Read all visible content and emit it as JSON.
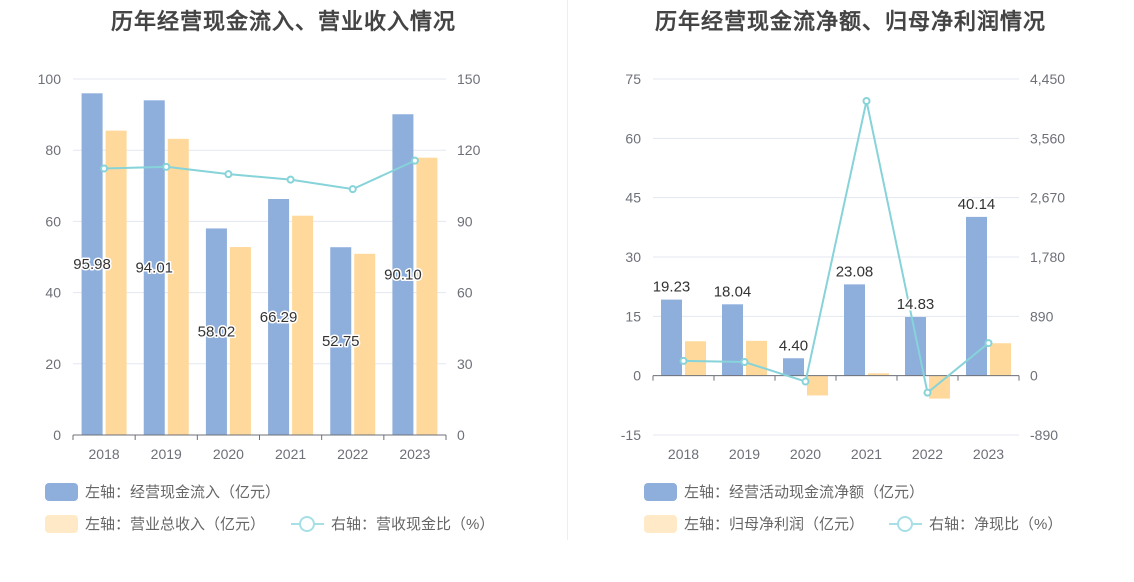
{
  "chart_data": [
    {
      "type": "bar",
      "title": "历年经营现金流入、营业收入情况",
      "categories": [
        "2018",
        "2019",
        "2020",
        "2021",
        "2022",
        "2023"
      ],
      "y_left": {
        "range": [
          0,
          100
        ],
        "ticks": [
          "0",
          "20",
          "40",
          "60",
          "80",
          "100"
        ]
      },
      "y_right": {
        "range": [
          0,
          150
        ],
        "ticks": [
          "0",
          "30",
          "60",
          "90",
          "120",
          "150"
        ]
      },
      "series": [
        {
          "name": "左轴：经营现金流入（亿元）",
          "axis": "left",
          "kind": "bar",
          "color": "#8eaedc",
          "values": [
            95.98,
            94.01,
            58.02,
            66.29,
            52.75,
            90.1
          ],
          "labels": [
            "95.98",
            "94.01",
            "58.02",
            "66.29",
            "52.75",
            "90.10"
          ]
        },
        {
          "name": "左轴：营业总收入（亿元）",
          "axis": "left",
          "kind": "bar",
          "color": "#ffd99c",
          "values": [
            85.5,
            83.2,
            52.8,
            61.6,
            50.9,
            77.9
          ]
        },
        {
          "name": "右轴：营收现金比（%）",
          "axis": "right",
          "kind": "line",
          "color": "#86d3d9",
          "values": [
            112.3,
            113.0,
            109.9,
            107.6,
            103.6,
            115.6
          ]
        }
      ],
      "legend_position": "bottom-left"
    },
    {
      "type": "bar",
      "title": "历年经营现金流净额、归母净利润情况",
      "categories": [
        "2018",
        "2019",
        "2020",
        "2021",
        "2022",
        "2023"
      ],
      "y_left": {
        "range": [
          -15,
          75
        ],
        "ticks": [
          "-15",
          "0",
          "15",
          "30",
          "45",
          "60",
          "75"
        ]
      },
      "y_right": {
        "range": [
          -890,
          4450
        ],
        "ticks": [
          "-890",
          "0",
          "890",
          "1,780",
          "2,670",
          "3,560",
          "4,450"
        ]
      },
      "series": [
        {
          "name": "左轴：经营活动现金流净额（亿元）",
          "axis": "left",
          "kind": "bar",
          "color": "#8eaedc",
          "values": [
            19.23,
            18.04,
            4.4,
            23.08,
            14.83,
            40.14
          ],
          "labels": [
            "19.23",
            "18.04",
            "4.40",
            "23.08",
            "14.83",
            "40.14"
          ]
        },
        {
          "name": "左轴：归母净利润（亿元）",
          "axis": "left",
          "kind": "bar",
          "color": "#ffd99c",
          "values": [
            8.7,
            8.8,
            -5.0,
            0.6,
            -5.8,
            8.2
          ]
        },
        {
          "name": "右轴：净现比（%）",
          "axis": "right",
          "kind": "line",
          "color": "#86d3d9",
          "values": [
            221,
            205,
            -88,
            4120,
            -255,
            489
          ]
        }
      ],
      "legend_position": "bottom-left"
    }
  ],
  "colors": {
    "grid": "#e3e7f0",
    "axis": "#6e7079",
    "tick_text": "#6e7079",
    "title": "#444444",
    "legend_text": "#666666",
    "line_marker_fill": "#ffffff"
  }
}
